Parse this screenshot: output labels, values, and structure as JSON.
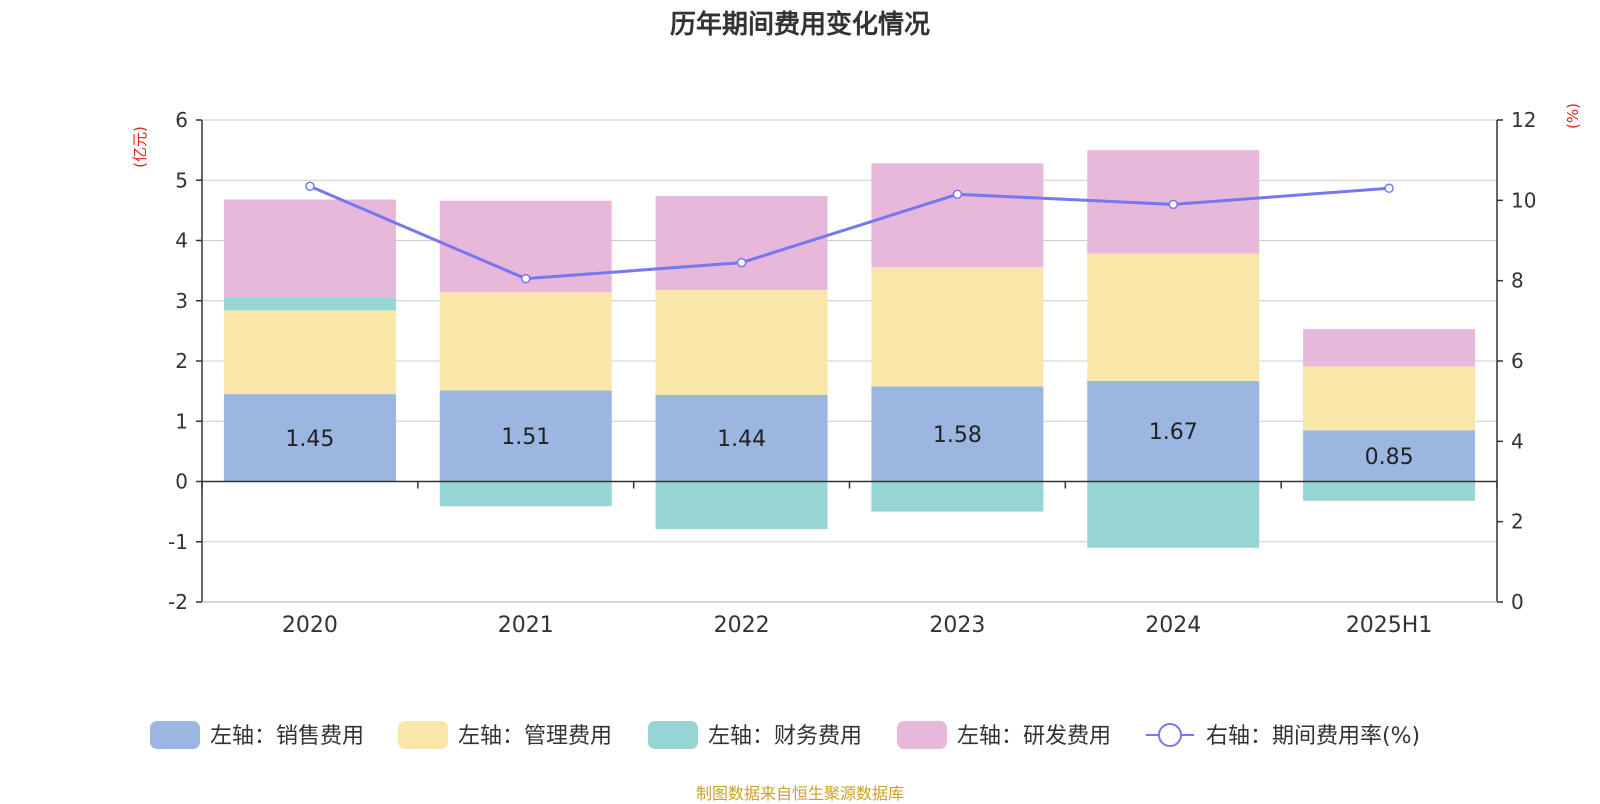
{
  "title": "历年期间费用变化情况",
  "source": "制图数据来自恒生聚源数据库",
  "colors": {
    "sales": "#9BB7E1",
    "admin": "#F8E7A8",
    "finance": "#97D4D4",
    "rd": "#E8B8DA",
    "rate": "#7777EE",
    "unit_text": "#E02020",
    "source_text": "#C9A227"
  },
  "chart_data": {
    "type": "bar",
    "stacked": true,
    "categories": [
      "2020",
      "2021",
      "2022",
      "2023",
      "2024",
      "2025H1"
    ],
    "left_axis": {
      "unit": "(亿元)",
      "ylim": [
        -2,
        6
      ],
      "ticks": [
        "-2",
        "-1",
        "0",
        "1",
        "2",
        "3",
        "4",
        "5",
        "6"
      ]
    },
    "right_axis": {
      "unit": "(%)",
      "ylim": [
        0,
        12
      ],
      "ticks": [
        "0",
        "2",
        "4",
        "6",
        "8",
        "10",
        "12"
      ]
    },
    "series": [
      {
        "name": "左轴：销售费用",
        "key": "sales",
        "axis": "left",
        "values": [
          1.45,
          1.51,
          1.44,
          1.58,
          1.67,
          0.85
        ],
        "labels": [
          "1.45",
          "1.51",
          "1.44",
          "1.58",
          "1.67",
          "0.85"
        ]
      },
      {
        "name": "左轴：管理费用",
        "key": "admin",
        "axis": "left",
        "values": [
          1.39,
          1.63,
          1.74,
          1.98,
          2.11,
          1.06
        ]
      },
      {
        "name": "左轴：财务费用",
        "key": "finance",
        "axis": "left",
        "values": [
          0.22,
          -0.41,
          -0.79,
          -0.5,
          -1.1,
          -0.32
        ]
      },
      {
        "name": "左轴：研发费用",
        "key": "rd",
        "axis": "left",
        "values": [
          1.62,
          1.52,
          1.56,
          1.72,
          1.72,
          0.62
        ]
      },
      {
        "name": "右轴：期间费用率(%)",
        "key": "rate",
        "axis": "right",
        "type": "line",
        "values": [
          10.35,
          8.05,
          8.45,
          10.15,
          9.9,
          10.3
        ]
      }
    ],
    "grid": true,
    "legend_position": "bottom"
  }
}
